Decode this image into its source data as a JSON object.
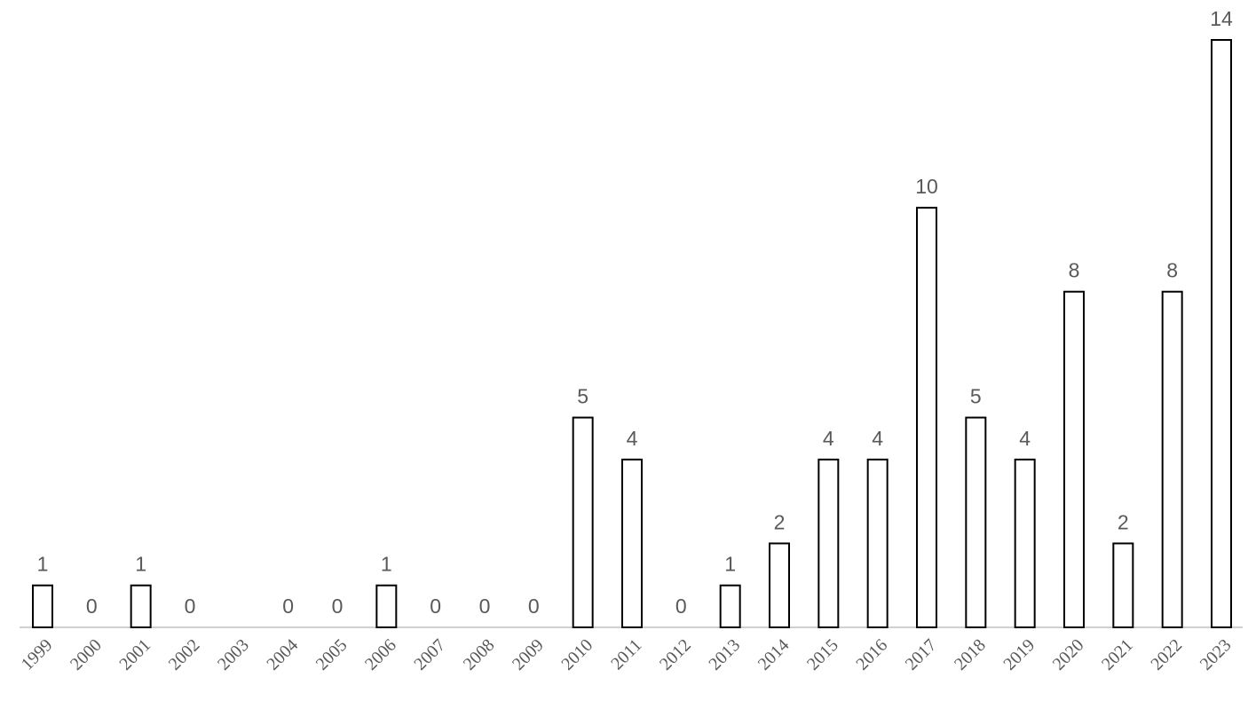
{
  "chart_data": {
    "type": "bar",
    "categories": [
      "1999",
      "2000",
      "2001",
      "2002",
      "2003",
      "2004",
      "2005",
      "2006",
      "2007",
      "2008",
      "2009",
      "2010",
      "2011",
      "2012",
      "2013",
      "2014",
      "2015",
      "2016",
      "2017",
      "2018",
      "2019",
      "2020",
      "2021",
      "2022",
      "2023"
    ],
    "values": [
      1,
      0,
      1,
      0,
      null,
      0,
      0,
      1,
      0,
      0,
      0,
      5,
      4,
      0,
      1,
      2,
      4,
      4,
      10,
      5,
      4,
      8,
      2,
      8,
      14
    ],
    "color": "#ffffff",
    "ylim": [
      0,
      14
    ]
  }
}
